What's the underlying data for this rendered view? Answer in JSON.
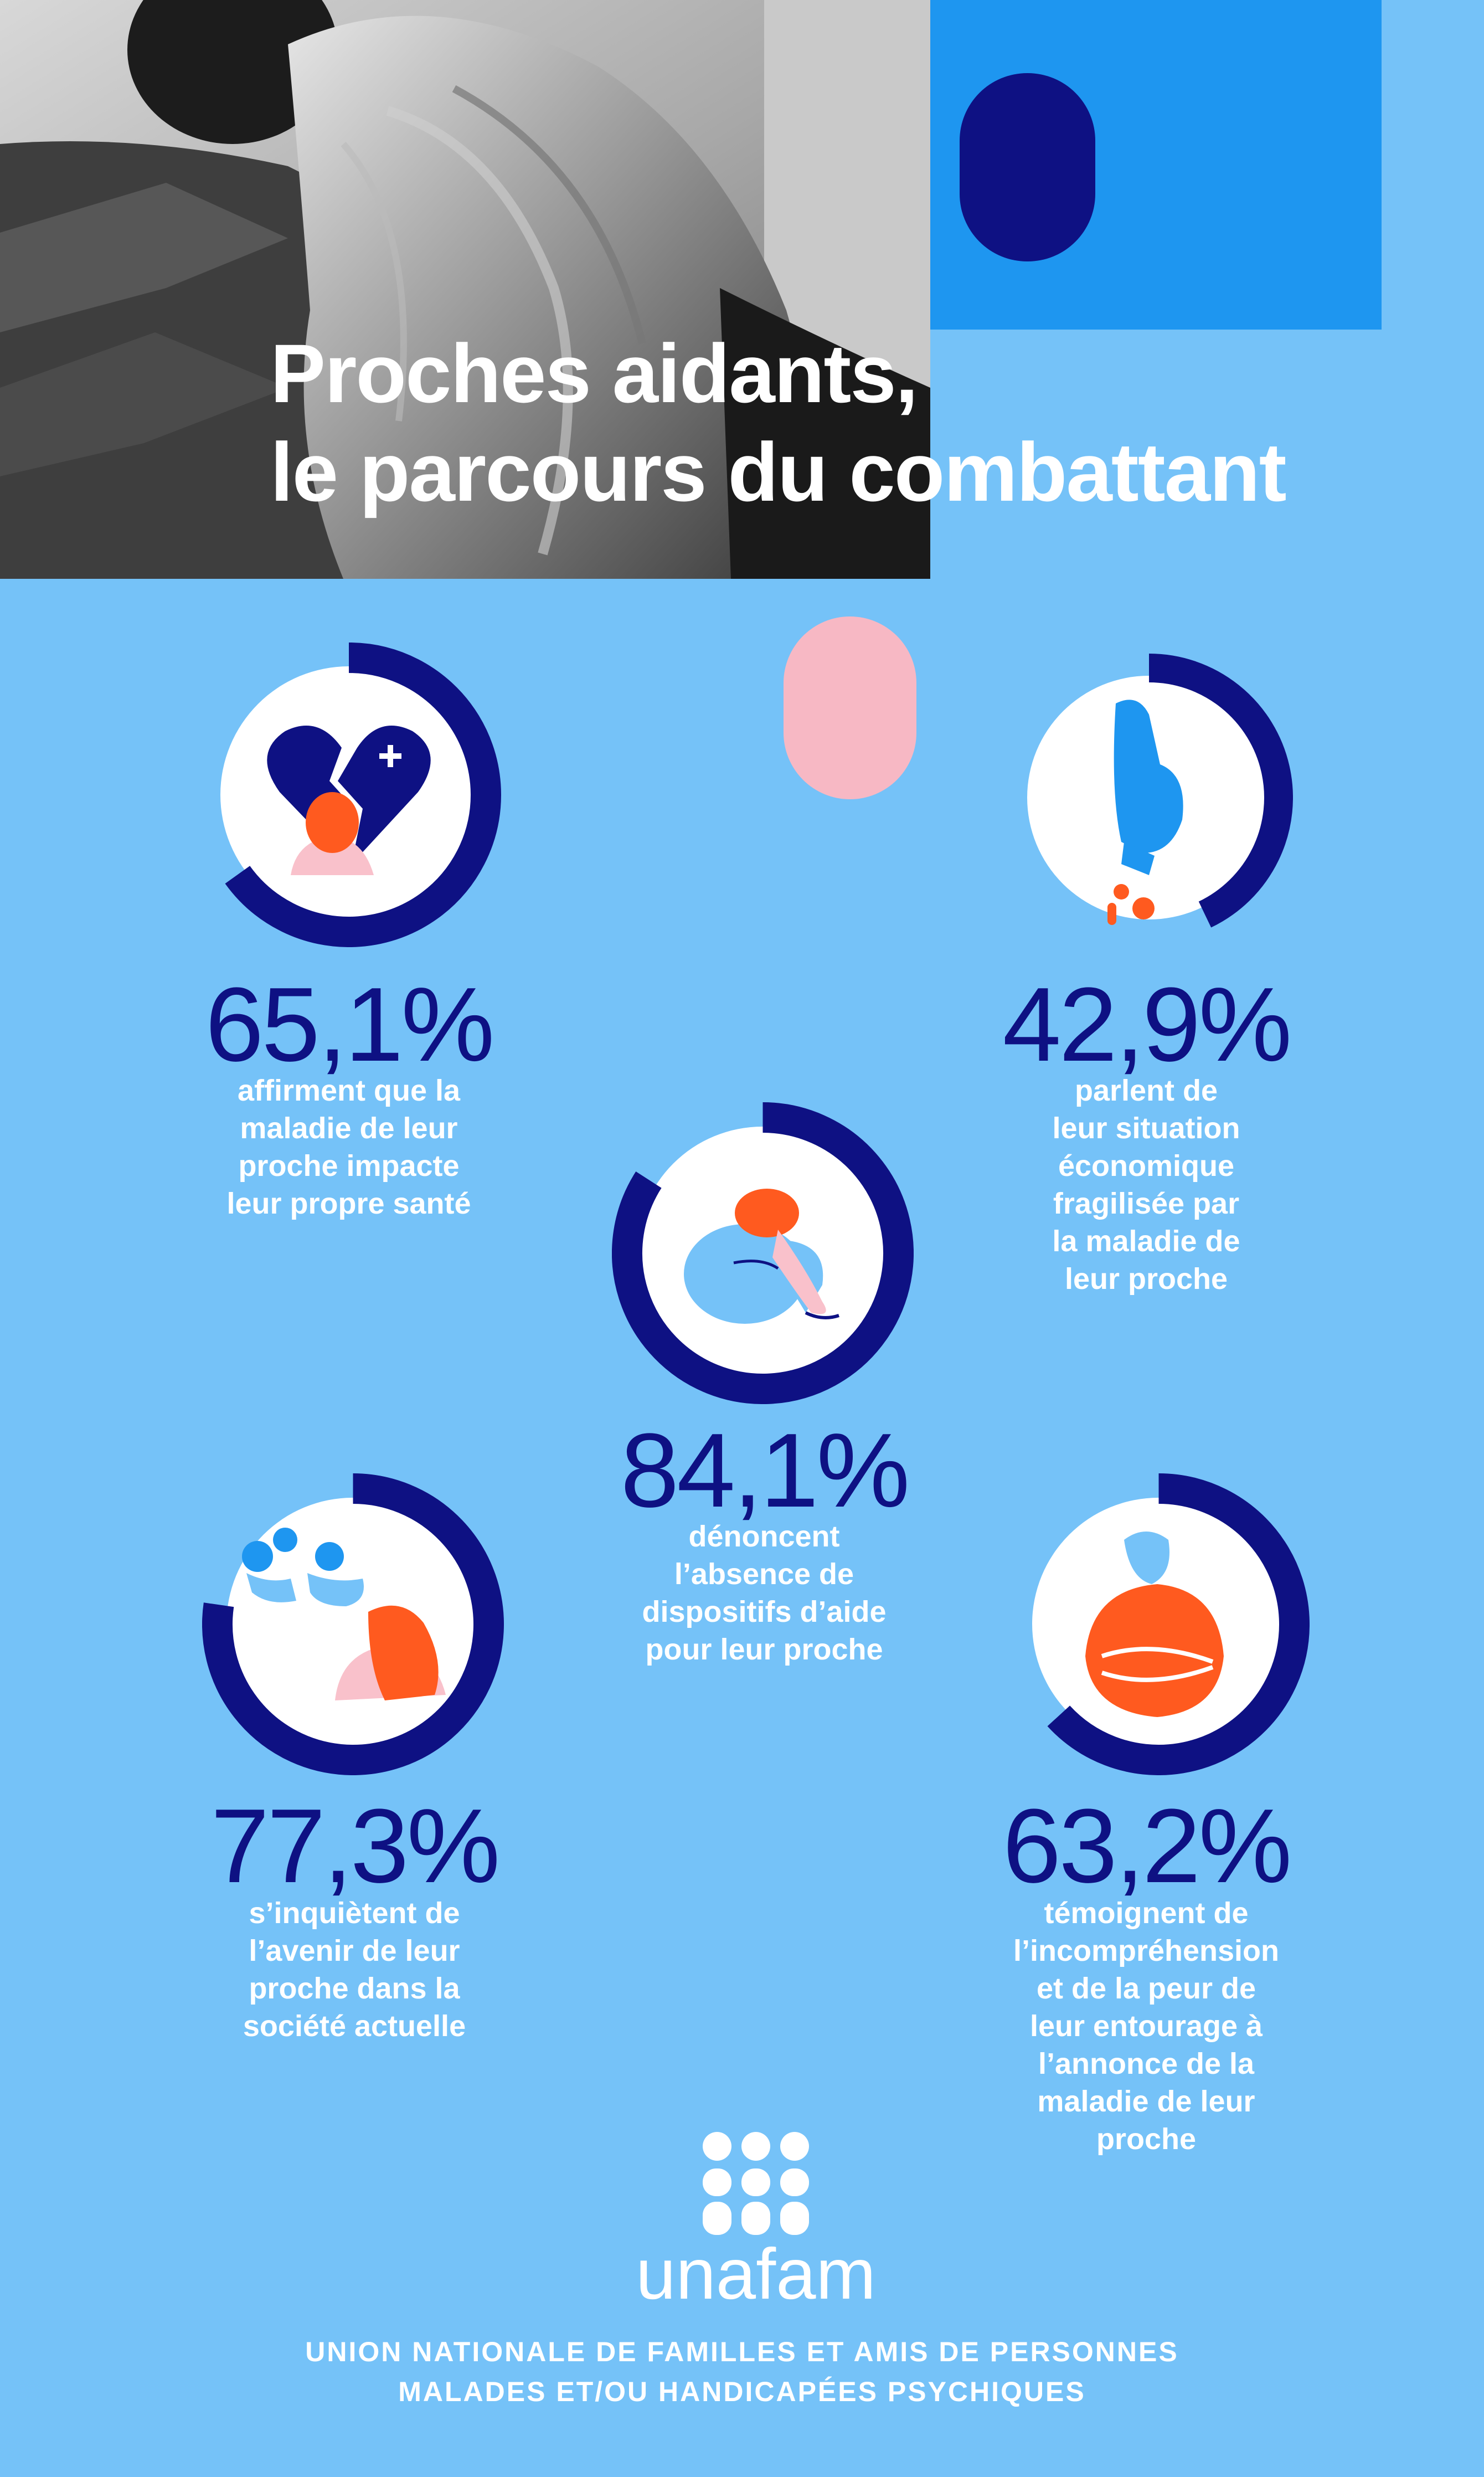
{
  "header": {
    "title_lines": [
      "Proches aidants,",
      "le parcours du combattant"
    ]
  },
  "colors": {
    "background": "#75C2F8",
    "navy": "#0E1183",
    "accent_blue": "#1E96F0",
    "pink": "#F7B8C4",
    "orange": "#FF5A1F",
    "skin": "#F9C1CB"
  },
  "stats": [
    {
      "id": "health",
      "value": "65,1%",
      "ring_fraction": 0.651,
      "icon": "broken-heart-icon",
      "caption_lines": [
        "affirment que la",
        "maladie de leur",
        "proche impacte",
        "leur propre santé"
      ]
    },
    {
      "id": "economic",
      "value": "42,9%",
      "ring_fraction": 0.429,
      "icon": "hand-dropping-coins-icon",
      "caption_lines": [
        "parlent de",
        "leur situation",
        "économique",
        "fragilisée par",
        "la maladie de",
        "leur proche"
      ]
    },
    {
      "id": "support",
      "value": "84,1%",
      "ring_fraction": 0.841,
      "icon": "sad-person-hugging-knees-icon",
      "caption_lines": [
        "dénoncent",
        "l’absence de",
        "dispositifs d’aide",
        "pour leur proche"
      ]
    },
    {
      "id": "future",
      "value": "77,3%",
      "ring_fraction": 0.773,
      "icon": "worried-woman-icon",
      "caption_lines": [
        "s’inquiètent de",
        "l’avenir de leur",
        "proche dans la",
        "société actuelle"
      ]
    },
    {
      "id": "misunderstanding",
      "value": "63,2%",
      "ring_fraction": 0.632,
      "icon": "person-crossed-arms-icon",
      "caption_lines": [
        "témoignent de",
        "l’incompréhension",
        "et de la peur de",
        "leur entourage à",
        "l’annonce de la",
        "maladie de leur",
        "proche"
      ]
    }
  ],
  "footer": {
    "logo_text": "unafam",
    "org_lines": [
      "UNION NATIONALE DE FAMILLES ET AMIS DE PERSONNES",
      "MALADES ET/OU HANDICAPÉES PSYCHIQUES"
    ]
  }
}
